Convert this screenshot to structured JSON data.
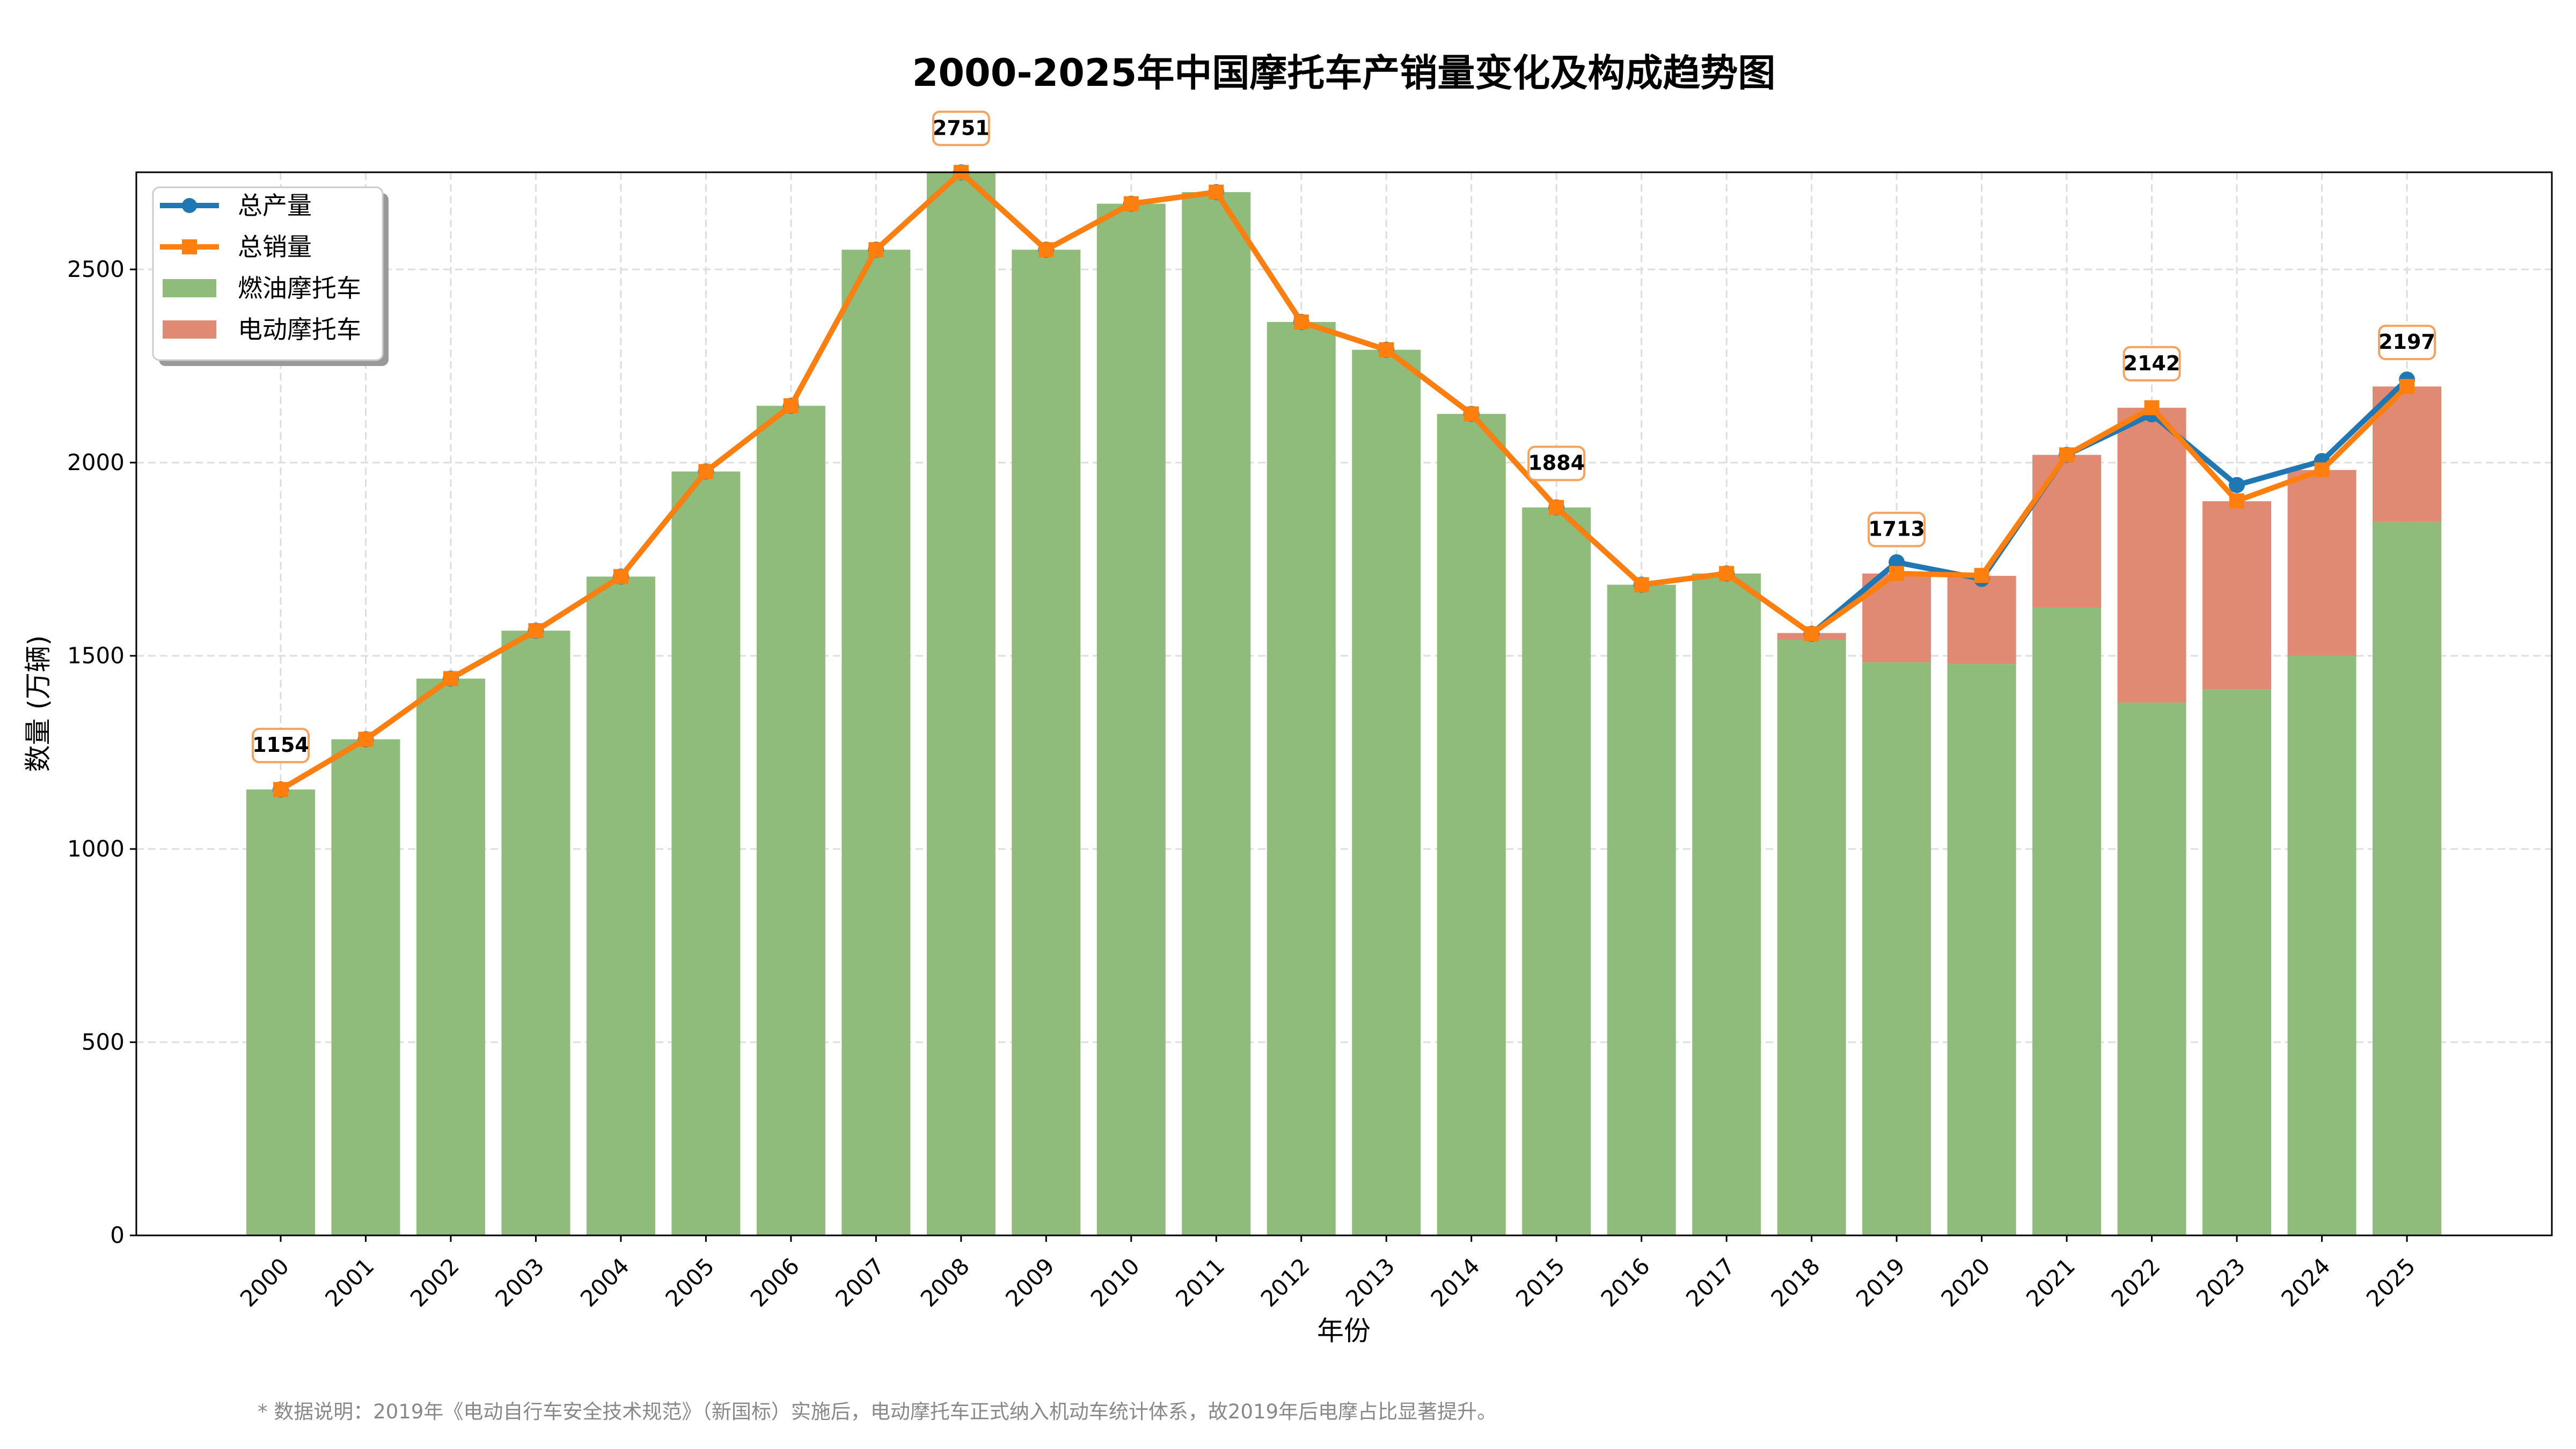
{
  "chart_data": {
    "type": "bar",
    "title": "2000-2025年中国摩托车产销量变化及构成趋势图",
    "xlabel": "年份",
    "ylabel": "数量 (万辆)",
    "ylim": [
      0,
      2750
    ],
    "yticks": [
      0,
      500,
      1000,
      1500,
      2000,
      2500
    ],
    "grid": true,
    "legend_position": "top-left",
    "categories": [
      "2000",
      "2001",
      "2002",
      "2003",
      "2004",
      "2005",
      "2006",
      "2007",
      "2008",
      "2009",
      "2010",
      "2011",
      "2012",
      "2013",
      "2014",
      "2015",
      "2016",
      "2017",
      "2018",
      "2019",
      "2020",
      "2021",
      "2022",
      "2023",
      "2024",
      "2025"
    ],
    "stacked_bars": [
      {
        "name": "燃油摩托车",
        "color": "#8fbc7a",
        "values": [
          1154,
          1284,
          1441,
          1565,
          1705,
          1977,
          2147,
          2551,
          2751,
          2551,
          2670,
          2700,
          2364,
          2292,
          2126,
          1884,
          1684,
          1713,
          1541,
          1483,
          1479,
          1625,
          1379,
          1413,
          1500,
          1846
        ]
      },
      {
        "name": "电动摩托车",
        "color": "#e08a74",
        "values": [
          0,
          0,
          0,
          0,
          0,
          0,
          0,
          0,
          0,
          0,
          0,
          0,
          0,
          0,
          0,
          0,
          0,
          0,
          18,
          230,
          228,
          395,
          763,
          487,
          481,
          351
        ]
      }
    ],
    "series": [
      {
        "name": "总产量",
        "color": "#1f77b4",
        "marker": "circle",
        "values": [
          1154,
          1284,
          1441,
          1565,
          1705,
          1977,
          2147,
          2551,
          2751,
          2551,
          2670,
          2700,
          2364,
          2292,
          2126,
          1884,
          1684,
          1713,
          1557,
          1742,
          1699,
          2020,
          2125,
          1942,
          2004,
          2215
        ]
      },
      {
        "name": "总销量",
        "color": "#ff7f0e",
        "marker": "square",
        "values": [
          1154,
          1284,
          1441,
          1565,
          1705,
          1977,
          2147,
          2551,
          2751,
          2551,
          2670,
          2700,
          2364,
          2292,
          2126,
          1884,
          1684,
          1713,
          1557,
          1713,
          1708,
          2020,
          2142,
          1901,
          1981,
          2197
        ]
      }
    ],
    "annotations": [
      {
        "category": "2000",
        "text": "1154",
        "value": 1154
      },
      {
        "category": "2008",
        "text": "2751",
        "value": 2751
      },
      {
        "category": "2015",
        "text": "1884",
        "value": 1884
      },
      {
        "category": "2019",
        "text": "1713",
        "value": 1713
      },
      {
        "category": "2022",
        "text": "2142",
        "value": 2142
      },
      {
        "category": "2025",
        "text": "2197",
        "value": 2197
      }
    ],
    "footnote": "* 数据说明：2019年《电动自行车安全技术规范》（新国标）实施后，电动摩托车正式纳入机动车统计体系，故2019年后电摩占比显著提升。"
  }
}
